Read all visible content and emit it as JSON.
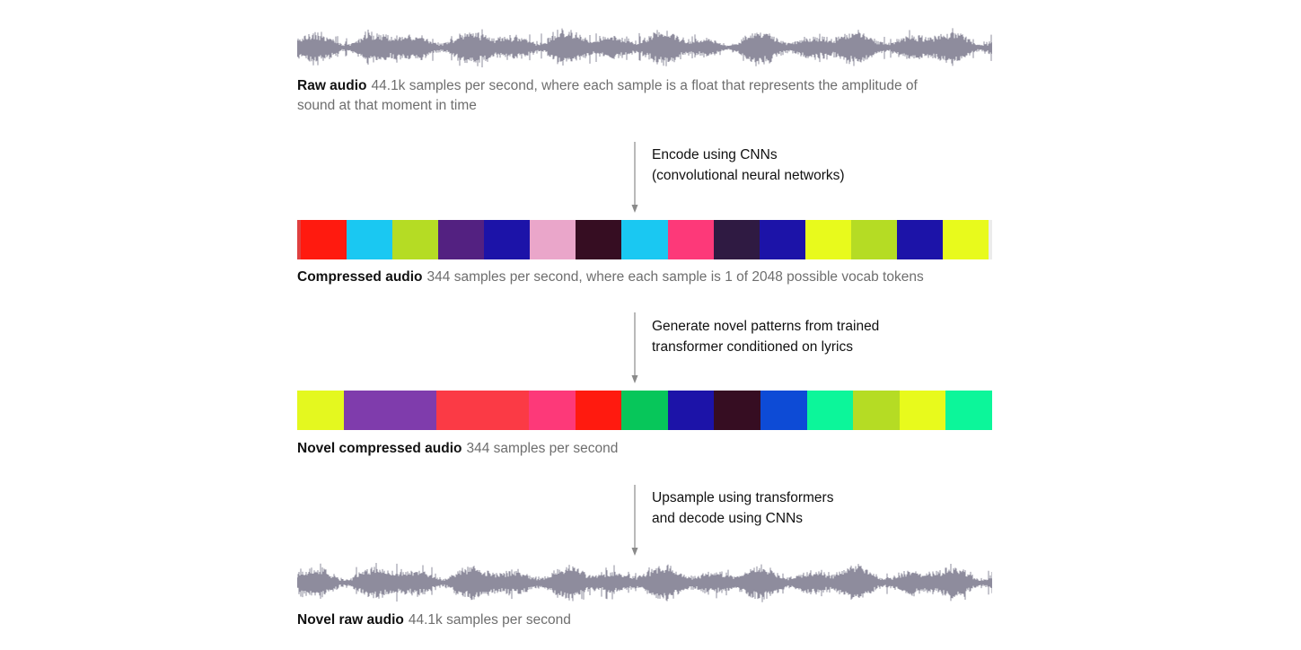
{
  "stages": {
    "raw": {
      "title": "Raw audio",
      "description_line1": "44.1k samples per second, where each sample is a float that represents the amplitude of",
      "description_line2": "sound at that moment in time"
    },
    "encode": {
      "line1": "Encode using CNNs",
      "line2": "(convolutional neural networks)"
    },
    "compressed": {
      "title": "Compressed audio",
      "description": "344 samples per second, where each sample is 1 of 2048 possible vocab tokens",
      "token_colors": [
        "#ff1a0f",
        "#1ac8f2",
        "#b5dc24",
        "#532181",
        "#1c13a8",
        "#eaa6ca",
        "#360d22",
        "#1ac8f2",
        "#fd3979",
        "#2f1a42",
        "#1c13a8",
        "#e8fa1c",
        "#b5dc24",
        "#1c13a8",
        "#e8fa1c"
      ]
    },
    "generate": {
      "line1": "Generate novel patterns from trained",
      "line2": "transformer conditioned on lyrics"
    },
    "novel_compressed": {
      "title": "Novel compressed audio",
      "description": "344 samples per second",
      "token_colors": [
        "#e4f81f",
        "#7f3cac",
        "#7f3cac",
        "#fb3a45",
        "#fb3a45",
        "#fd3979",
        "#ff1a0f",
        "#07c65a",
        "#1c13a8",
        "#360d22",
        "#0d4bd6",
        "#0cf69a",
        "#b5dc24",
        "#e8fa1c",
        "#0cf69a"
      ]
    },
    "upsample": {
      "line1": "Upsample using transformers",
      "line2": "and decode using CNNs"
    },
    "novel_raw": {
      "title": "Novel raw audio",
      "description": "44.1k samples per second"
    }
  },
  "colors": {
    "waveform": "#8e8c9d",
    "arrow": "#8a8a8a"
  }
}
